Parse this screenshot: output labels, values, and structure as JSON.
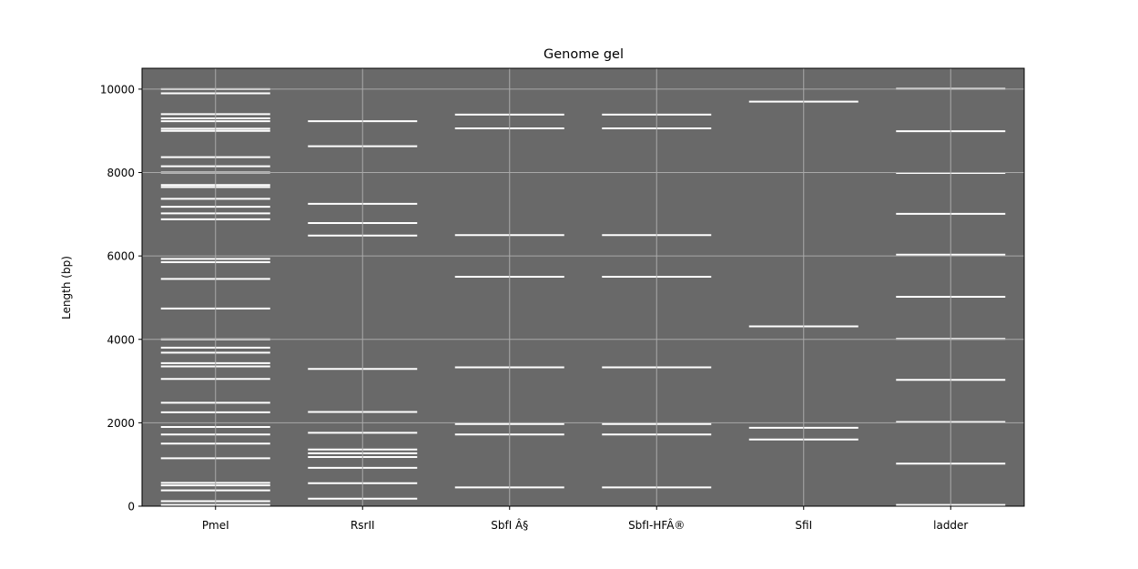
{
  "chart_data": {
    "type": "gel",
    "title": "Genome gel",
    "xlabel": "",
    "ylabel": "Length (bp)",
    "ylim": [
      0,
      10500
    ],
    "yticks": [
      0,
      2000,
      4000,
      6000,
      8000,
      10000
    ],
    "grid": true,
    "colors": {
      "background": "#696969",
      "band": "#ffffff",
      "grid": "#a9a9a9"
    },
    "lanes": [
      {
        "name": "PmeI",
        "bands": [
          30,
          120,
          380,
          500,
          560,
          1150,
          1500,
          1720,
          1900,
          2250,
          2480,
          3050,
          3350,
          3430,
          3680,
          3800,
          4000,
          4740,
          5450,
          5850,
          5930,
          6880,
          7020,
          7180,
          7370,
          7650,
          7700,
          8000,
          8150,
          8370,
          9000,
          9050,
          9230,
          9300,
          9400,
          9900,
          10000
        ]
      },
      {
        "name": "RsrII",
        "bands": [
          180,
          550,
          920,
          1180,
          1270,
          1360,
          1760,
          2260,
          3290,
          6490,
          6790,
          7250,
          8630,
          9230
        ]
      },
      {
        "name": "SbfI Â§",
        "bands": [
          450,
          1720,
          1970,
          3330,
          5500,
          6500,
          9060,
          9390
        ]
      },
      {
        "name": "SbfI-HFÂ®",
        "bands": [
          450,
          1720,
          1970,
          3330,
          5500,
          6500,
          9060,
          9390
        ]
      },
      {
        "name": "SfiI",
        "bands": [
          1600,
          1880,
          4310,
          9700
        ]
      },
      {
        "name": "ladder",
        "bands": [
          30,
          1020,
          2020,
          3030,
          4010,
          5020,
          6030,
          7010,
          7990,
          8990,
          10010
        ]
      }
    ]
  }
}
